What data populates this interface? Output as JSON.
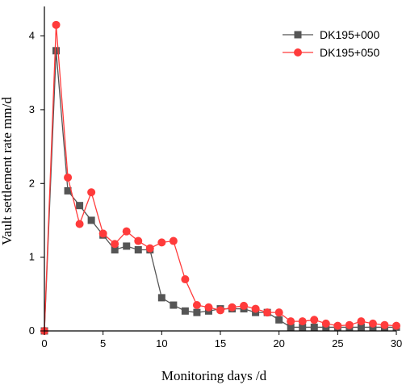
{
  "chart_data": {
    "type": "line",
    "xlabel": "Monitoring days /d",
    "ylabel": "Vault settlement rate mm/d",
    "xlim": [
      0,
      30
    ],
    "ylim": [
      0,
      4.4
    ],
    "x_ticks": [
      0,
      5,
      10,
      15,
      20,
      25,
      30
    ],
    "y_ticks": [
      0,
      1,
      2,
      3,
      4
    ],
    "x_tick_labels": [
      "0",
      "5",
      "10",
      "15",
      "20",
      "25",
      "30"
    ],
    "y_tick_labels": [
      "0",
      "1",
      "2",
      "3",
      "4"
    ],
    "grid": false,
    "legend_position": "top-right",
    "series": [
      {
        "name": "DK195+000",
        "color": "#555555",
        "marker": "square",
        "x": [
          0,
          1,
          2,
          3,
          4,
          5,
          6,
          7,
          8,
          9,
          10,
          11,
          12,
          13,
          14,
          15,
          16,
          17,
          18,
          19,
          20,
          21,
          22,
          23,
          24,
          25,
          26,
          27,
          28,
          29,
          30
        ],
        "y": [
          0,
          3.8,
          1.9,
          1.7,
          1.5,
          1.3,
          1.1,
          1.15,
          1.1,
          1.1,
          0.45,
          0.35,
          0.27,
          0.25,
          0.27,
          0.3,
          0.3,
          0.3,
          0.25,
          0.25,
          0.15,
          0.05,
          0.05,
          0.05,
          0.05,
          0.05,
          0.05,
          0.05,
          0.05,
          0.05,
          0.05
        ]
      },
      {
        "name": "DK195+050",
        "color": "#ff3b3b",
        "marker": "circle",
        "x": [
          0,
          1,
          2,
          3,
          4,
          5,
          6,
          7,
          8,
          9,
          10,
          11,
          12,
          13,
          14,
          15,
          16,
          17,
          18,
          19,
          20,
          21,
          22,
          23,
          24,
          25,
          26,
          27,
          28,
          29,
          30
        ],
        "y": [
          0,
          4.15,
          2.08,
          1.45,
          1.88,
          1.32,
          1.18,
          1.35,
          1.22,
          1.12,
          1.2,
          1.22,
          0.7,
          0.35,
          0.32,
          0.28,
          0.32,
          0.34,
          0.3,
          0.25,
          0.25,
          0.13,
          0.13,
          0.15,
          0.1,
          0.07,
          0.08,
          0.13,
          0.1,
          0.08,
          0.07
        ]
      }
    ]
  }
}
